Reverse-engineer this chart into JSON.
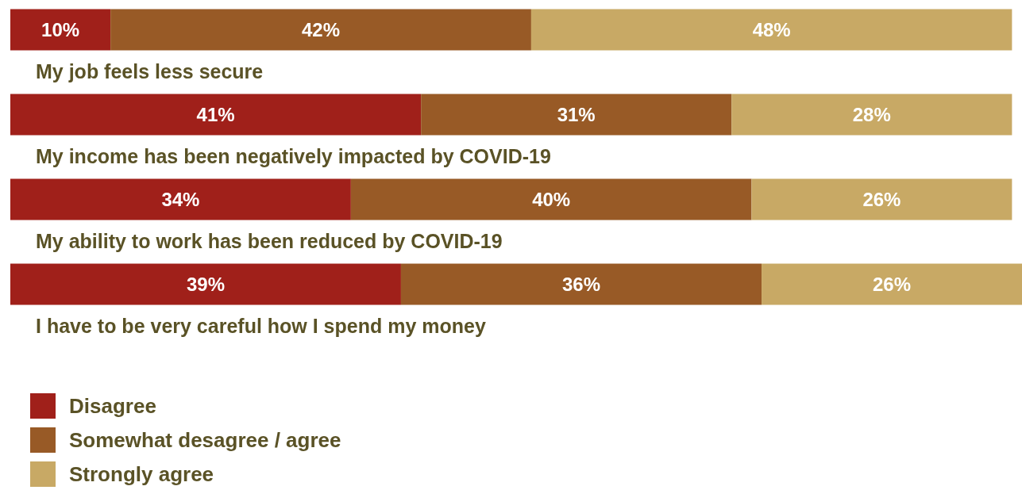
{
  "chart_data": {
    "type": "bar",
    "orientation": "horizontal",
    "stacked": true,
    "legend": "bottom left",
    "categories": [
      "My job feels less secure",
      "My income has been negatively impacted by COVID-19",
      "My ability to work has been reduced by COVID-19",
      "I have to be very careful how I spend my money"
    ],
    "series": [
      {
        "name": "Disagree",
        "color": "#a0201a",
        "values": [
          10,
          41,
          34,
          39
        ],
        "value_labels": [
          "10%",
          "41%",
          "34%",
          "39%"
        ]
      },
      {
        "name": "Somewhat desagree / agree",
        "color": "#985a26",
        "values": [
          42,
          31,
          40,
          36
        ],
        "value_labels": [
          "42%",
          "31%",
          "40%",
          "36%"
        ]
      },
      {
        "name": "Strongly agree",
        "color": "#c8a965",
        "values": [
          48,
          28,
          26,
          26
        ],
        "value_labels": [
          "48%",
          "28%",
          "26%",
          "26%"
        ]
      }
    ]
  }
}
